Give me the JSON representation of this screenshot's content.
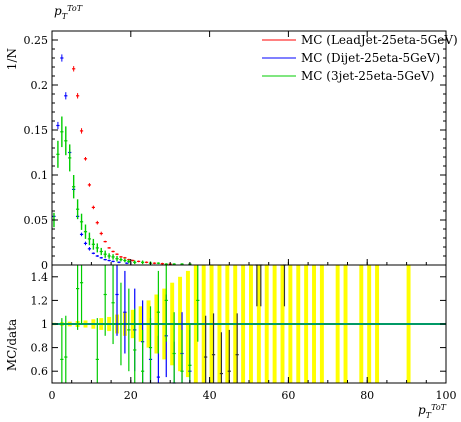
{
  "chart_data": [
    {
      "type": "scatter",
      "panel": "main",
      "title": "p_T^{ToT}",
      "ylabel": "1/N",
      "xlim": [
        0,
        100
      ],
      "ylim": [
        0,
        0.26
      ],
      "yticks": [
        0,
        0.05,
        0.1,
        0.15,
        0.2,
        0.25
      ],
      "ytick_labels": [
        "0",
        "0.05",
        "0.1",
        "0.15",
        "0.2",
        "0.25"
      ],
      "legend_position": "top-right",
      "grid": false,
      "series": [
        {
          "name": "MC (LeadJet-25eta-5GeV)",
          "color": "#ff0000",
          "x": [
            5.5,
            6.5,
            7.5,
            8.5,
            9.5,
            10.5,
            11.5,
            12.5,
            13.5,
            14.5,
            15.5,
            16.5,
            17.5,
            18.5,
            19.5,
            20.5,
            22,
            24,
            26,
            28,
            30
          ],
          "y": [
            0.218,
            0.188,
            0.149,
            0.118,
            0.089,
            0.064,
            0.047,
            0.035,
            0.026,
            0.019,
            0.015,
            0.012,
            0.009,
            0.008,
            0.006,
            0.005,
            0.004,
            0.003,
            0.002,
            0.0015,
            0.001
          ],
          "err": [
            0.003,
            0.003,
            0.003,
            0.002,
            0.002,
            0.002,
            0.002,
            0.002,
            0.001,
            0.001,
            0.001,
            0.001,
            0.001,
            0.001,
            0.001,
            0.001,
            0.001,
            0.001,
            0.001,
            0.001,
            0.001
          ]
        },
        {
          "name": "MC (Dijet-25eta-5GeV)",
          "color": "#0000ff",
          "x": [
            0.5,
            1.5,
            2.5,
            3.5,
            4.5,
            5.5,
            6.5,
            7.5,
            8.5,
            9.5,
            10.5,
            11.5,
            12.5,
            13.5,
            14.5,
            15.5,
            17,
            19
          ],
          "y": [
            0.054,
            0.155,
            0.23,
            0.188,
            0.125,
            0.084,
            0.054,
            0.034,
            0.024,
            0.018,
            0.013,
            0.01,
            0.008,
            0.006,
            0.005,
            0.004,
            0.003,
            0.002
          ],
          "err": [
            0.003,
            0.004,
            0.004,
            0.004,
            0.004,
            0.003,
            0.003,
            0.002,
            0.002,
            0.002,
            0.001,
            0.001,
            0.001,
            0.001,
            0.001,
            0.001,
            0.001,
            0.001
          ]
        },
        {
          "name": "MC (3jet-25eta-5GeV)",
          "color": "#00cc00",
          "x": [
            0.5,
            1.5,
            2.5,
            3.5,
            4.5,
            5.5,
            6.5,
            7.5,
            8.5,
            9.5,
            10.5,
            11.5,
            12.5,
            13.5,
            14.5,
            15.5,
            16.5,
            17.5,
            18.5,
            19.5,
            21,
            23,
            25,
            27,
            29,
            31,
            33,
            35
          ],
          "y": [
            0.05,
            0.123,
            0.148,
            0.138,
            0.119,
            0.087,
            0.062,
            0.048,
            0.037,
            0.029,
            0.023,
            0.019,
            0.015,
            0.012,
            0.01,
            0.009,
            0.007,
            0.006,
            0.005,
            0.004,
            0.003,
            0.003,
            0.002,
            0.002,
            0.001,
            0.001,
            0.001,
            0.001
          ],
          "err": [
            0.008,
            0.015,
            0.017,
            0.016,
            0.015,
            0.013,
            0.011,
            0.009,
            0.008,
            0.007,
            0.006,
            0.005,
            0.004,
            0.004,
            0.003,
            0.003,
            0.003,
            0.002,
            0.002,
            0.002,
            0.002,
            0.002,
            0.002,
            0.001,
            0.001,
            0.001,
            0.001,
            0.001
          ]
        }
      ]
    },
    {
      "type": "scatter",
      "panel": "ratio",
      "ylabel": "MC/data",
      "xlabel": "p_T^{ToT}",
      "xlim": [
        0,
        100
      ],
      "ylim": [
        0.5,
        1.5
      ],
      "xticks": [
        0,
        20,
        40,
        60,
        80,
        100
      ],
      "xtick_labels": [
        "0",
        "20",
        "40",
        "60",
        "80",
        "100"
      ],
      "yticks": [
        0.6,
        0.8,
        1,
        1.2,
        1.4
      ],
      "ytick_labels": [
        "0.6",
        "0.8",
        "1",
        "1.2",
        "1.4"
      ],
      "reference_line": 1,
      "band_color": "#ffff00",
      "band": [
        [
          0,
          1,
          0.01
        ],
        [
          2,
          3,
          0.015
        ],
        [
          4,
          5,
          0.02
        ],
        [
          6,
          7,
          0.025
        ],
        [
          8,
          9,
          0.03
        ],
        [
          10,
          11,
          0.04
        ],
        [
          12,
          13,
          0.05
        ],
        [
          14,
          15,
          0.06
        ],
        [
          16,
          17,
          0.08
        ],
        [
          18,
          19,
          0.1
        ],
        [
          20,
          21,
          0.12
        ],
        [
          22,
          23,
          0.15
        ],
        [
          24,
          25,
          0.2
        ],
        [
          26,
          27,
          0.25
        ],
        [
          28,
          29,
          0.3
        ],
        [
          30,
          31,
          0.35
        ],
        [
          32,
          33,
          0.4
        ],
        [
          34,
          35,
          0.45
        ],
        [
          36,
          37,
          0.5
        ],
        [
          38,
          39,
          0.6
        ],
        [
          40,
          41,
          0.8
        ],
        [
          42,
          43,
          1
        ],
        [
          44,
          45,
          1
        ],
        [
          46,
          47,
          1
        ],
        [
          48,
          49,
          1
        ],
        [
          50,
          51,
          1
        ],
        [
          52,
          53,
          1
        ],
        [
          54,
          55,
          1
        ],
        [
          56,
          57,
          1
        ],
        [
          58,
          59,
          1
        ],
        [
          60,
          61,
          1
        ],
        [
          62,
          63,
          1
        ],
        [
          64,
          65,
          1
        ],
        [
          66,
          67,
          1
        ],
        [
          68,
          69,
          1
        ],
        [
          72,
          73,
          1
        ],
        [
          74,
          75,
          1
        ],
        [
          78,
          79,
          1
        ],
        [
          80,
          81,
          1
        ],
        [
          82,
          83,
          1
        ],
        [
          90,
          91,
          1
        ]
      ],
      "series": [
        {
          "name": "MC (Dijet-25eta-5GeV)",
          "color": "#0000ff",
          "x": [
            16.5,
            18.5,
            21,
            23,
            25,
            27,
            29,
            31,
            33,
            35
          ],
          "y": [
            1.25,
            1.1,
            0.95,
            0.85,
            0.7,
            0.55,
            0.9,
            0.5,
            0.75,
            0.6
          ]
        },
        {
          "name": "MC (3jet-25eta-5GeV)",
          "color": "#00cc00",
          "x": [
            2.5,
            3.5,
            6.5,
            7.5,
            11.5,
            13.5,
            15.5,
            17.5,
            19.5,
            21,
            23,
            25,
            27,
            29,
            31,
            33,
            35,
            37
          ],
          "y": [
            0.7,
            0.72,
            1.3,
            1.35,
            0.7,
            1.25,
            1.18,
            1.0,
            0.95,
            0.78,
            0.6,
            0.8,
            1.1,
            1.2,
            0.75,
            0.6,
            0.65,
            1.2
          ]
        },
        {
          "name": "MC (LeadJet-25eta-5GeV)",
          "color": "#333333",
          "x": [
            39,
            41,
            43,
            45,
            47,
            52,
            53,
            59
          ],
          "y": [
            0.72,
            0.74,
            0.58,
            0.6,
            0.74,
            1.5,
            1.5,
            1.5
          ]
        }
      ]
    }
  ]
}
